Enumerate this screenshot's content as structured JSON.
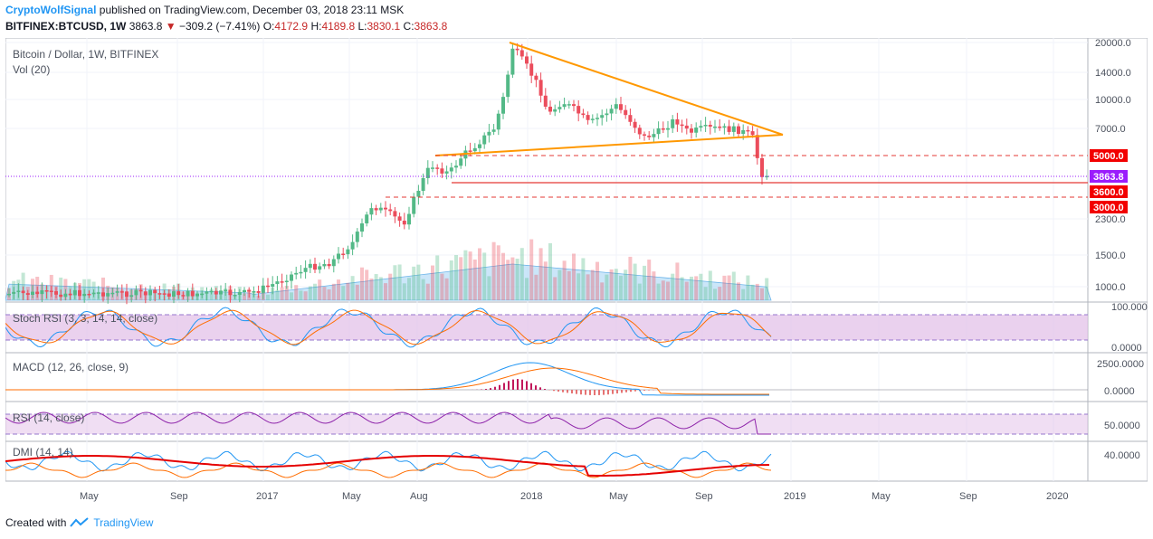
{
  "header": {
    "author": "CryptoWolfSignal",
    "published_text": "published on TradingView.com, December 03, 2018 23:11 MSK",
    "symbol_line": "BITFINEX:BTCUSD, 1W",
    "last": "3863.8",
    "change": "−309.2 (−7.41%)",
    "ohlc": {
      "o": "4172.9",
      "h": "4189.8",
      "l": "3830.1",
      "c": "3863.8"
    }
  },
  "legend": {
    "title": "Bitcoin / Dollar, 1W, BITFINEX",
    "vol": "Vol (20)"
  },
  "price_axis": [
    "20000.0",
    "14000.0",
    "10000.0",
    "7000.0",
    "2300.0",
    "1500.0",
    "1000.0"
  ],
  "price_badges": [
    {
      "label": "5000.0",
      "color": "#f20000"
    },
    {
      "label": "3863.8",
      "color": "#9b1cfc"
    },
    {
      "label": "3600.0",
      "color": "#f20000"
    },
    {
      "label": "3000.0",
      "color": "#f20000"
    }
  ],
  "indicators": [
    {
      "name": "Stoch RSI (3, 3, 14, 14, close)",
      "axis": [
        "100.0000",
        "0.0000"
      ]
    },
    {
      "name": "MACD (12, 26, close, 9)",
      "axis": [
        "2500.0000",
        "0.0000"
      ]
    },
    {
      "name": "RSI (14, close)",
      "axis": [
        "50.0000"
      ]
    },
    {
      "name": "DMI (14, 14)",
      "axis": [
        "40.0000"
      ]
    }
  ],
  "time_axis": [
    "May",
    "Sep",
    "2017",
    "May",
    "Aug",
    "2018",
    "May",
    "Sep",
    "2019",
    "May",
    "Sep",
    "2020"
  ],
  "footer": {
    "created_with": "Created with",
    "brand": "TradingView"
  },
  "colors": {
    "up": "#53b987",
    "down": "#eb4d5c",
    "volume_ma": "#a8d5f5",
    "trendline": "#ff9800",
    "stoch_band": "#e1bee7"
  }
}
